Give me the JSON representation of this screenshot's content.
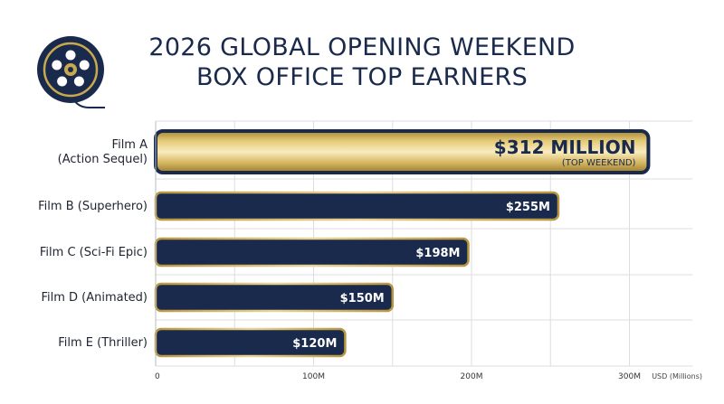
{
  "title": {
    "line1": "2026 GLOBAL OPENING WEEKEND",
    "line2": "BOX OFFICE TOP EARNERS"
  },
  "colors": {
    "navy": "#1a2a4d",
    "gold": "#c9a94e",
    "gold_light": "#f4e3a6",
    "gold_dark": "#a98832",
    "grid": "#dddddd"
  },
  "icon": "film-reel-icon",
  "chart_data": {
    "type": "bar",
    "orientation": "horizontal",
    "categories": [
      [
        "Film A",
        "(Action Sequel)"
      ],
      [
        "Film B (Superhero)"
      ],
      [
        "Film C (Sci-Fi Epic)"
      ],
      [
        "Film D (Animated)"
      ],
      [
        "Film E (Thriller)"
      ]
    ],
    "values": [
      312,
      255,
      198,
      150,
      120
    ],
    "data_labels": [
      "$312 MILLION",
      "$255M",
      "$198M",
      "$150M",
      "$120M"
    ],
    "top_sublabel": "(TOP WEEKEND)",
    "title": "2026 GLOBAL OPENING WEEKEND BOX OFFICE TOP EARNERS",
    "xlabel": "USD (Millions)",
    "ylabel": "",
    "xlim": [
      0,
      340
    ],
    "xticks": [
      0,
      100,
      200,
      300
    ],
    "xtick_labels": [
      "0",
      "100M",
      "200M",
      "300M"
    ],
    "grid": true,
    "legend": "none"
  }
}
